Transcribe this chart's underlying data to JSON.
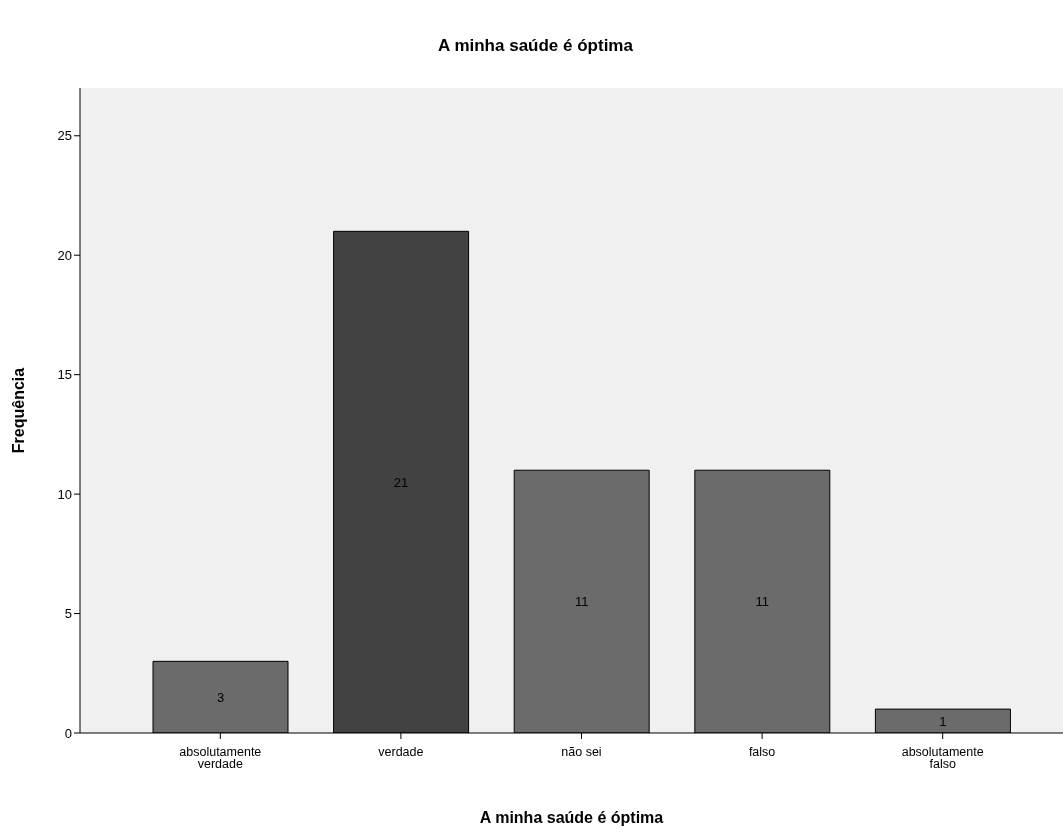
{
  "chart_data": {
    "type": "bar",
    "title": "A minha saúde é óptima",
    "xlabel": "A minha saúde é óptima",
    "ylabel": "Frequência",
    "categories": [
      "absolutamente verdade",
      "verdade",
      "não sei",
      "falso",
      "absolutamente falso"
    ],
    "values": [
      3,
      21,
      11,
      11,
      1
    ],
    "colors": [
      "#6b6b6b",
      "#424242",
      "#6b6b6b",
      "#6b6b6b",
      "#6b6b6b"
    ],
    "ylim": [
      0,
      27
    ],
    "yticks": [
      0,
      5,
      10,
      15,
      20,
      25
    ],
    "grid": false,
    "legend": false,
    "data_labels": true
  }
}
